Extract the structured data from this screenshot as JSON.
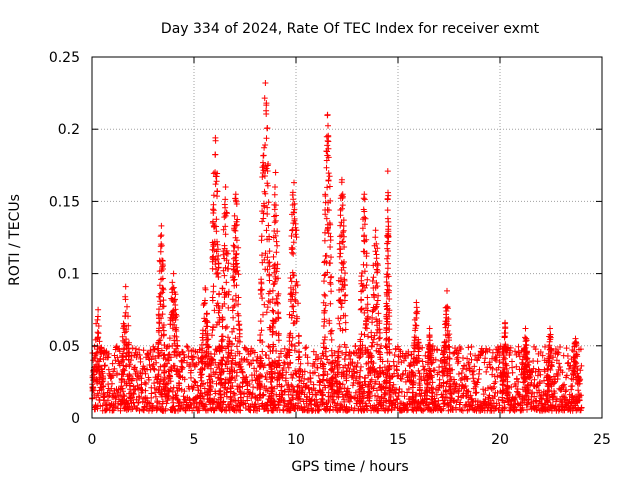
{
  "chart_data": {
    "type": "scatter",
    "title": "Day 334 of 2024, Rate Of TEC Index for receiver exmt",
    "xlabel": "GPS time / hours",
    "ylabel": "ROTI / TECUs",
    "xlim": [
      0,
      25
    ],
    "ylim": [
      0,
      0.25
    ],
    "xticks": [
      0,
      5,
      10,
      15,
      20,
      25
    ],
    "xtick_labels": [
      "0",
      "5",
      "10",
      "15",
      "20",
      "25"
    ],
    "yticks": [
      0,
      0.05,
      0.1,
      0.15,
      0.2,
      0.25
    ],
    "ytick_labels": [
      "0",
      "0.05",
      "0.1",
      "0.15",
      "0.2",
      "0.25"
    ],
    "grid": true,
    "marker": "+",
    "marker_color": "#ff0000",
    "series": [
      {
        "name": "ROTI",
        "x_range": [
          0,
          24
        ],
        "baseline_band": [
          0.005,
          0.03
        ],
        "bursts": [
          {
            "x_start": 0.0,
            "x_end": 0.6,
            "peak": 0.075
          },
          {
            "x_start": 1.4,
            "x_end": 1.9,
            "peak": 0.091
          },
          {
            "x_start": 3.2,
            "x_end": 3.6,
            "peak": 0.133
          },
          {
            "x_start": 3.7,
            "x_end": 4.3,
            "peak": 0.1
          },
          {
            "x_start": 5.3,
            "x_end": 5.8,
            "peak": 0.09
          },
          {
            "x_start": 5.8,
            "x_end": 6.3,
            "peak": 0.194
          },
          {
            "x_start": 6.3,
            "x_end": 6.8,
            "peak": 0.16
          },
          {
            "x_start": 6.8,
            "x_end": 7.3,
            "peak": 0.155
          },
          {
            "x_start": 8.2,
            "x_end": 8.8,
            "peak": 0.232
          },
          {
            "x_start": 8.8,
            "x_end": 9.2,
            "peak": 0.17
          },
          {
            "x_start": 9.6,
            "x_end": 10.2,
            "peak": 0.163
          },
          {
            "x_start": 11.3,
            "x_end": 11.8,
            "peak": 0.21
          },
          {
            "x_start": 12.0,
            "x_end": 12.5,
            "peak": 0.165
          },
          {
            "x_start": 13.1,
            "x_end": 13.6,
            "peak": 0.155
          },
          {
            "x_start": 13.6,
            "x_end": 14.2,
            "peak": 0.13
          },
          {
            "x_start": 14.4,
            "x_end": 14.6,
            "peak": 0.171
          },
          {
            "x_start": 15.7,
            "x_end": 16.1,
            "peak": 0.08
          },
          {
            "x_start": 16.4,
            "x_end": 16.7,
            "peak": 0.062
          },
          {
            "x_start": 17.2,
            "x_end": 17.6,
            "peak": 0.088
          },
          {
            "x_start": 20.1,
            "x_end": 20.4,
            "peak": 0.066
          },
          {
            "x_start": 21.1,
            "x_end": 21.4,
            "peak": 0.062
          },
          {
            "x_start": 22.3,
            "x_end": 22.6,
            "peak": 0.062
          },
          {
            "x_start": 23.5,
            "x_end": 23.9,
            "peak": 0.055
          }
        ]
      }
    ]
  }
}
